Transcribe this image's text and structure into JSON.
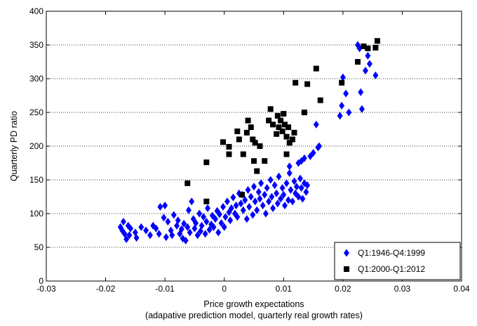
{
  "chart_data": {
    "type": "scatter",
    "title": "",
    "xlabel": "Price growth expectations",
    "xlabel_line2": "(adapative prediction model, quarterly real growth rates)",
    "ylabel": "Quarterly PD ratio",
    "xlim": [
      -0.03,
      0.04
    ],
    "ylim": [
      0,
      400
    ],
    "x_ticks": [
      -0.03,
      -0.02,
      -0.01,
      0,
      0.01,
      0.02,
      0.03,
      0.04
    ],
    "x_tick_labels": [
      "-0.03",
      "-0.02",
      "-0.01",
      "0",
      "0.01",
      "0.02",
      "0.03",
      "0.04"
    ],
    "y_ticks": [
      0,
      50,
      100,
      150,
      200,
      250,
      300,
      350,
      400
    ],
    "y_tick_labels": [
      "0",
      "50",
      "100",
      "150",
      "200",
      "250",
      "300",
      "350",
      "400"
    ],
    "grid": "horizontal dotted",
    "legend_position": "bottom-right",
    "series": [
      {
        "name": "Q1:1946-Q4:1999",
        "color": "#0000ff",
        "marker": "diamond",
        "points": [
          [
            -0.0175,
            80
          ],
          [
            -0.0172,
            75
          ],
          [
            -0.017,
            88
          ],
          [
            -0.0168,
            70
          ],
          [
            -0.0165,
            62
          ],
          [
            -0.0162,
            82
          ],
          [
            -0.016,
            68
          ],
          [
            -0.0158,
            78
          ],
          [
            -0.015,
            72
          ],
          [
            -0.0148,
            64
          ],
          [
            -0.014,
            80
          ],
          [
            -0.0132,
            75
          ],
          [
            -0.0125,
            68
          ],
          [
            -0.012,
            82
          ],
          [
            -0.0115,
            78
          ],
          [
            -0.011,
            70
          ],
          [
            -0.0108,
            110
          ],
          [
            -0.0102,
            94
          ],
          [
            -0.01,
            112
          ],
          [
            -0.0098,
            65
          ],
          [
            -0.0095,
            88
          ],
          [
            -0.009,
            75
          ],
          [
            -0.0088,
            68
          ],
          [
            -0.0085,
            98
          ],
          [
            -0.008,
            82
          ],
          [
            -0.0078,
            90
          ],
          [
            -0.0075,
            70
          ],
          [
            -0.0072,
            77
          ],
          [
            -0.007,
            63
          ],
          [
            -0.0068,
            85
          ],
          [
            -0.0065,
            60
          ],
          [
            -0.0062,
            80
          ],
          [
            -0.006,
            105
          ],
          [
            -0.0058,
            72
          ],
          [
            -0.0055,
            118
          ],
          [
            -0.0052,
            92
          ],
          [
            -0.005,
            78
          ],
          [
            -0.0048,
            86
          ],
          [
            -0.0045,
            68
          ],
          [
            -0.0042,
            100
          ],
          [
            -0.004,
            74
          ],
          [
            -0.0038,
            82
          ],
          [
            -0.0035,
            95
          ],
          [
            -0.0032,
            70
          ],
          [
            -0.003,
            88
          ],
          [
            -0.0028,
            108
          ],
          [
            -0.0025,
            76
          ],
          [
            -0.0022,
            84
          ],
          [
            -0.002,
            97
          ],
          [
            -0.0018,
            80
          ],
          [
            -0.0015,
            92
          ],
          [
            -0.0012,
            104
          ],
          [
            -0.001,
            72
          ],
          [
            -0.0008,
            99
          ],
          [
            -0.0005,
            86
          ],
          [
            -0.0002,
            110
          ],
          [
            0.0,
            80
          ],
          [
            0.0002,
            95
          ],
          [
            0.0005,
            118
          ],
          [
            0.0008,
            102
          ],
          [
            0.001,
            90
          ],
          [
            0.0012,
            108
          ],
          [
            0.0015,
            124
          ],
          [
            0.0018,
            100
          ],
          [
            0.002,
            112
          ],
          [
            0.0022,
            95
          ],
          [
            0.0025,
            130
          ],
          [
            0.0028,
            115
          ],
          [
            0.003,
            128
          ],
          [
            0.0032,
            105
          ],
          [
            0.0035,
            120
          ],
          [
            0.0038,
            92
          ],
          [
            0.004,
            135
          ],
          [
            0.0042,
            110
          ],
          [
            0.0045,
            125
          ],
          [
            0.0048,
            98
          ],
          [
            0.005,
            140
          ],
          [
            0.0052,
            118
          ],
          [
            0.0055,
            105
          ],
          [
            0.0058,
            132
          ],
          [
            0.006,
            122
          ],
          [
            0.0062,
            145
          ],
          [
            0.0065,
            112
          ],
          [
            0.0068,
            128
          ],
          [
            0.007,
            100
          ],
          [
            0.0072,
            138
          ],
          [
            0.0075,
            118
          ],
          [
            0.0078,
            150
          ],
          [
            0.008,
            125
          ],
          [
            0.0082,
            108
          ],
          [
            0.0085,
            142
          ],
          [
            0.0088,
            130
          ],
          [
            0.009,
            115
          ],
          [
            0.0092,
            155
          ],
          [
            0.0095,
            122
          ],
          [
            0.0098,
            138
          ],
          [
            0.01,
            128
          ],
          [
            0.0102,
            112
          ],
          [
            0.0105,
            145
          ],
          [
            0.0108,
            120
          ],
          [
            0.011,
            160
          ],
          [
            0.0112,
            135
          ],
          [
            0.0115,
            118
          ],
          [
            0.0118,
            148
          ],
          [
            0.012,
            130
          ],
          [
            0.0122,
            140
          ],
          [
            0.0125,
            125
          ],
          [
            0.0128,
            152
          ],
          [
            0.013,
            138
          ],
          [
            0.0132,
            122
          ],
          [
            0.0135,
            145
          ],
          [
            0.0138,
            132
          ],
          [
            0.014,
            142
          ],
          [
            0.011,
            170
          ],
          [
            0.0125,
            175
          ],
          [
            0.013,
            178
          ],
          [
            0.0135,
            182
          ],
          [
            0.0145,
            185
          ],
          [
            0.015,
            190
          ],
          [
            0.0158,
            198
          ],
          [
            0.016,
            200
          ],
          [
            0.0155,
            232
          ],
          [
            0.0195,
            245
          ],
          [
            0.0198,
            260
          ],
          [
            0.02,
            302
          ],
          [
            0.0205,
            278
          ],
          [
            0.021,
            250
          ],
          [
            0.0225,
            350
          ],
          [
            0.0228,
            345
          ],
          [
            0.023,
            280
          ],
          [
            0.0232,
            255
          ],
          [
            0.0238,
            312
          ],
          [
            0.0242,
            334
          ],
          [
            0.0245,
            322
          ],
          [
            0.0255,
            305
          ]
        ]
      },
      {
        "name": "Q1:2000-Q1:2012",
        "color": "#000000",
        "marker": "square",
        "points": [
          [
            -0.0062,
            145
          ],
          [
            -0.003,
            118
          ],
          [
            -0.003,
            176
          ],
          [
            -0.0002,
            206
          ],
          [
            0.0008,
            199
          ],
          [
            0.0008,
            188
          ],
          [
            0.0022,
            222
          ],
          [
            0.0025,
            210
          ],
          [
            0.003,
            128
          ],
          [
            0.0032,
            188
          ],
          [
            0.0038,
            220
          ],
          [
            0.004,
            238
          ],
          [
            0.0045,
            228
          ],
          [
            0.0048,
            210
          ],
          [
            0.005,
            178
          ],
          [
            0.0052,
            205
          ],
          [
            0.0055,
            163
          ],
          [
            0.006,
            200
          ],
          [
            0.0068,
            178
          ],
          [
            0.0075,
            238
          ],
          [
            0.0078,
            255
          ],
          [
            0.0082,
            232
          ],
          [
            0.0088,
            218
          ],
          [
            0.009,
            245
          ],
          [
            0.0092,
            228
          ],
          [
            0.0095,
            238
          ],
          [
            0.0098,
            222
          ],
          [
            0.01,
            248
          ],
          [
            0.0102,
            232
          ],
          [
            0.0105,
            188
          ],
          [
            0.0105,
            214
          ],
          [
            0.0108,
            228
          ],
          [
            0.011,
            205
          ],
          [
            0.0115,
            210
          ],
          [
            0.0118,
            220
          ],
          [
            0.012,
            294
          ],
          [
            0.0135,
            250
          ],
          [
            0.014,
            292
          ],
          [
            0.0155,
            315
          ],
          [
            0.0162,
            268
          ],
          [
            0.0198,
            294
          ],
          [
            0.0225,
            325
          ],
          [
            0.0235,
            348
          ],
          [
            0.0242,
            345
          ],
          [
            0.0255,
            346
          ],
          [
            0.0258,
            356
          ]
        ]
      }
    ]
  }
}
